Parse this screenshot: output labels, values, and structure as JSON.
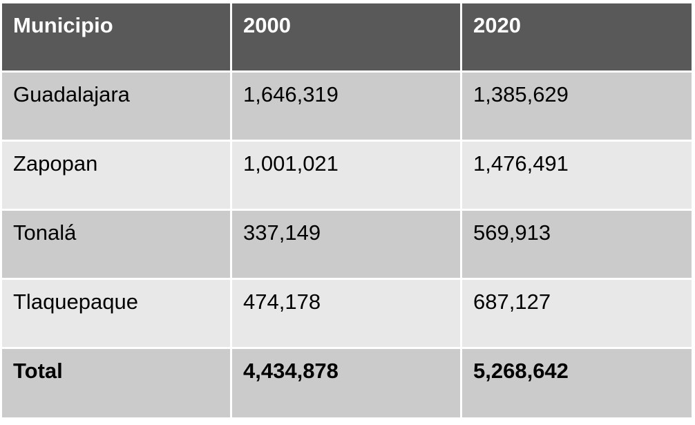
{
  "table": {
    "headers": [
      "Municipio",
      "2000",
      "2020"
    ],
    "rows": [
      {
        "municipio": "Guadalajara",
        "y2000": "1,646,319",
        "y2020": "1,385,629"
      },
      {
        "municipio": "Zapopan",
        "y2000": "1,001,021",
        "y2020": "1,476,491"
      },
      {
        "municipio": "Tonalá",
        "y2000": "337,149",
        "y2020": "569,913"
      },
      {
        "municipio": "Tlaquepaque",
        "y2000": "474,178",
        "y2020": "687,127"
      }
    ],
    "total": {
      "municipio": "Total",
      "y2000": "4,434,878",
      "y2020": "5,268,642"
    }
  },
  "colors": {
    "header_bg": "#595959",
    "header_text": "#ffffff",
    "row_dark": "#cbcbcb",
    "row_light": "#e8e8e8"
  }
}
